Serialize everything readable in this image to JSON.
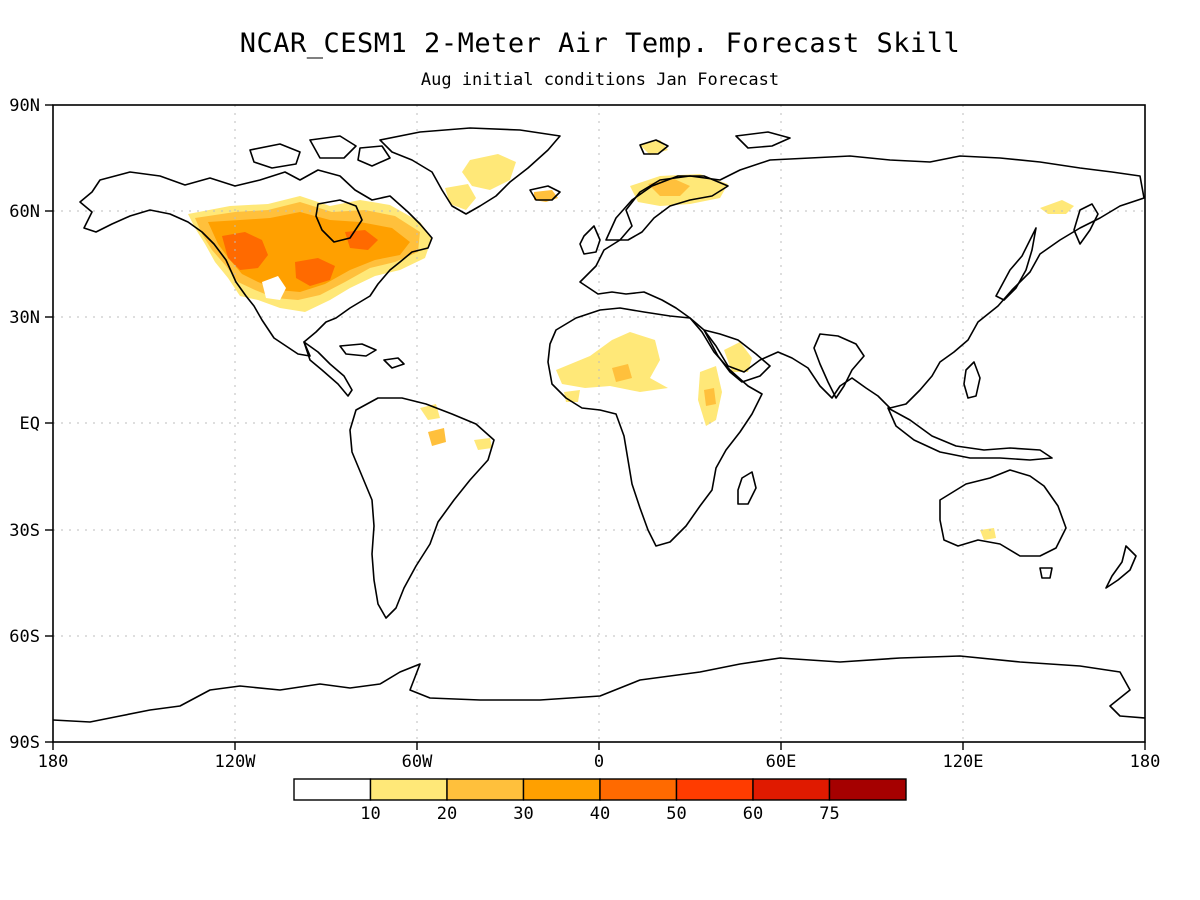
{
  "title": "NCAR_CESM1 2-Meter Air Temp. Forecast Skill",
  "subtitle": "Aug initial conditions  Jan Forecast",
  "map": {
    "lat_labels": [
      "90N",
      "60N",
      "30N",
      "EQ",
      "30S",
      "60S",
      "90S"
    ],
    "lon_labels": [
      "180",
      "120W",
      "60W",
      "0",
      "60E",
      "120E",
      "180"
    ]
  },
  "colorbar": {
    "colors": [
      "#ffffff",
      "#ffe878",
      "#ffc03c",
      "#ffa000",
      "#ff6a00",
      "#ff3c00",
      "#e01a00",
      "#a50000"
    ],
    "labels": [
      "10",
      "20",
      "30",
      "40",
      "50",
      "60",
      "75"
    ]
  },
  "skill_colors": {
    "level_10": "#ffe878",
    "level_20": "#ffc03c",
    "level_30": "#ffa000",
    "level_40": "#ff6a00"
  }
}
